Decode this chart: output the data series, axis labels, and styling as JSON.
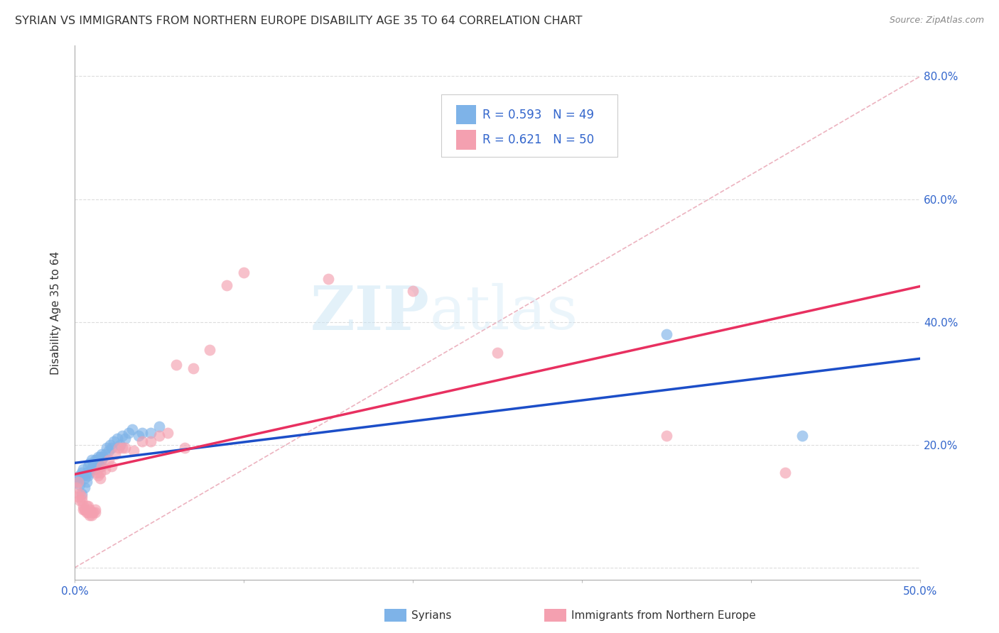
{
  "title": "SYRIAN VS IMMIGRANTS FROM NORTHERN EUROPE DISABILITY AGE 35 TO 64 CORRELATION CHART",
  "source": "Source: ZipAtlas.com",
  "ylabel": "Disability Age 35 to 64",
  "xlim": [
    0.0,
    0.5
  ],
  "ylim": [
    -0.02,
    0.85
  ],
  "xticks": [
    0.0,
    0.1,
    0.2,
    0.3,
    0.4,
    0.5
  ],
  "xtick_labels": [
    "0.0%",
    "",
    "",
    "",
    "",
    "50.0%"
  ],
  "yticks": [
    0.0,
    0.2,
    0.4,
    0.6,
    0.8
  ],
  "ytick_labels_right": [
    "",
    "20.0%",
    "40.0%",
    "60.0%",
    "80.0%"
  ],
  "syrians_R": 0.593,
  "syrians_N": 49,
  "northern_europe_R": 0.621,
  "northern_europe_N": 50,
  "syrians_color": "#7EB3E8",
  "northern_europe_color": "#F4A0B0",
  "trendline_syrians_color": "#1C4EC8",
  "trendline_northern_color": "#E83060",
  "diagonal_color": "#E8A0B0",
  "watermark_zip": "ZIP",
  "watermark_atlas": "atlas",
  "syrians_x": [
    0.001,
    0.002,
    0.003,
    0.003,
    0.004,
    0.004,
    0.005,
    0.005,
    0.006,
    0.006,
    0.007,
    0.007,
    0.008,
    0.008,
    0.009,
    0.009,
    0.01,
    0.01,
    0.011,
    0.011,
    0.012,
    0.012,
    0.013,
    0.013,
    0.014,
    0.014,
    0.015,
    0.015,
    0.016,
    0.016,
    0.017,
    0.018,
    0.019,
    0.02,
    0.021,
    0.022,
    0.023,
    0.025,
    0.027,
    0.028,
    0.03,
    0.032,
    0.034,
    0.038,
    0.04,
    0.045,
    0.05,
    0.35,
    0.43
  ],
  "syrians_y": [
    0.14,
    0.145,
    0.15,
    0.135,
    0.155,
    0.12,
    0.15,
    0.16,
    0.145,
    0.13,
    0.155,
    0.14,
    0.15,
    0.165,
    0.155,
    0.17,
    0.16,
    0.175,
    0.165,
    0.17,
    0.16,
    0.175,
    0.165,
    0.175,
    0.17,
    0.18,
    0.165,
    0.18,
    0.175,
    0.185,
    0.18,
    0.185,
    0.195,
    0.19,
    0.2,
    0.195,
    0.205,
    0.21,
    0.2,
    0.215,
    0.21,
    0.22,
    0.225,
    0.215,
    0.22,
    0.22,
    0.23,
    0.38,
    0.215
  ],
  "northern_x": [
    0.001,
    0.002,
    0.002,
    0.003,
    0.003,
    0.004,
    0.004,
    0.005,
    0.005,
    0.006,
    0.006,
    0.007,
    0.007,
    0.008,
    0.008,
    0.009,
    0.009,
    0.01,
    0.01,
    0.011,
    0.012,
    0.012,
    0.013,
    0.014,
    0.015,
    0.015,
    0.016,
    0.018,
    0.02,
    0.022,
    0.024,
    0.026,
    0.028,
    0.03,
    0.035,
    0.04,
    0.045,
    0.05,
    0.055,
    0.06,
    0.065,
    0.07,
    0.08,
    0.09,
    0.1,
    0.15,
    0.2,
    0.25,
    0.35,
    0.42
  ],
  "northern_y": [
    0.13,
    0.14,
    0.115,
    0.12,
    0.11,
    0.115,
    0.11,
    0.1,
    0.095,
    0.095,
    0.095,
    0.1,
    0.09,
    0.09,
    0.1,
    0.085,
    0.095,
    0.09,
    0.085,
    0.09,
    0.095,
    0.09,
    0.155,
    0.15,
    0.155,
    0.145,
    0.165,
    0.16,
    0.175,
    0.165,
    0.185,
    0.195,
    0.195,
    0.195,
    0.19,
    0.205,
    0.205,
    0.215,
    0.22,
    0.33,
    0.195,
    0.325,
    0.355,
    0.46,
    0.48,
    0.47,
    0.45,
    0.35,
    0.215,
    0.155
  ]
}
